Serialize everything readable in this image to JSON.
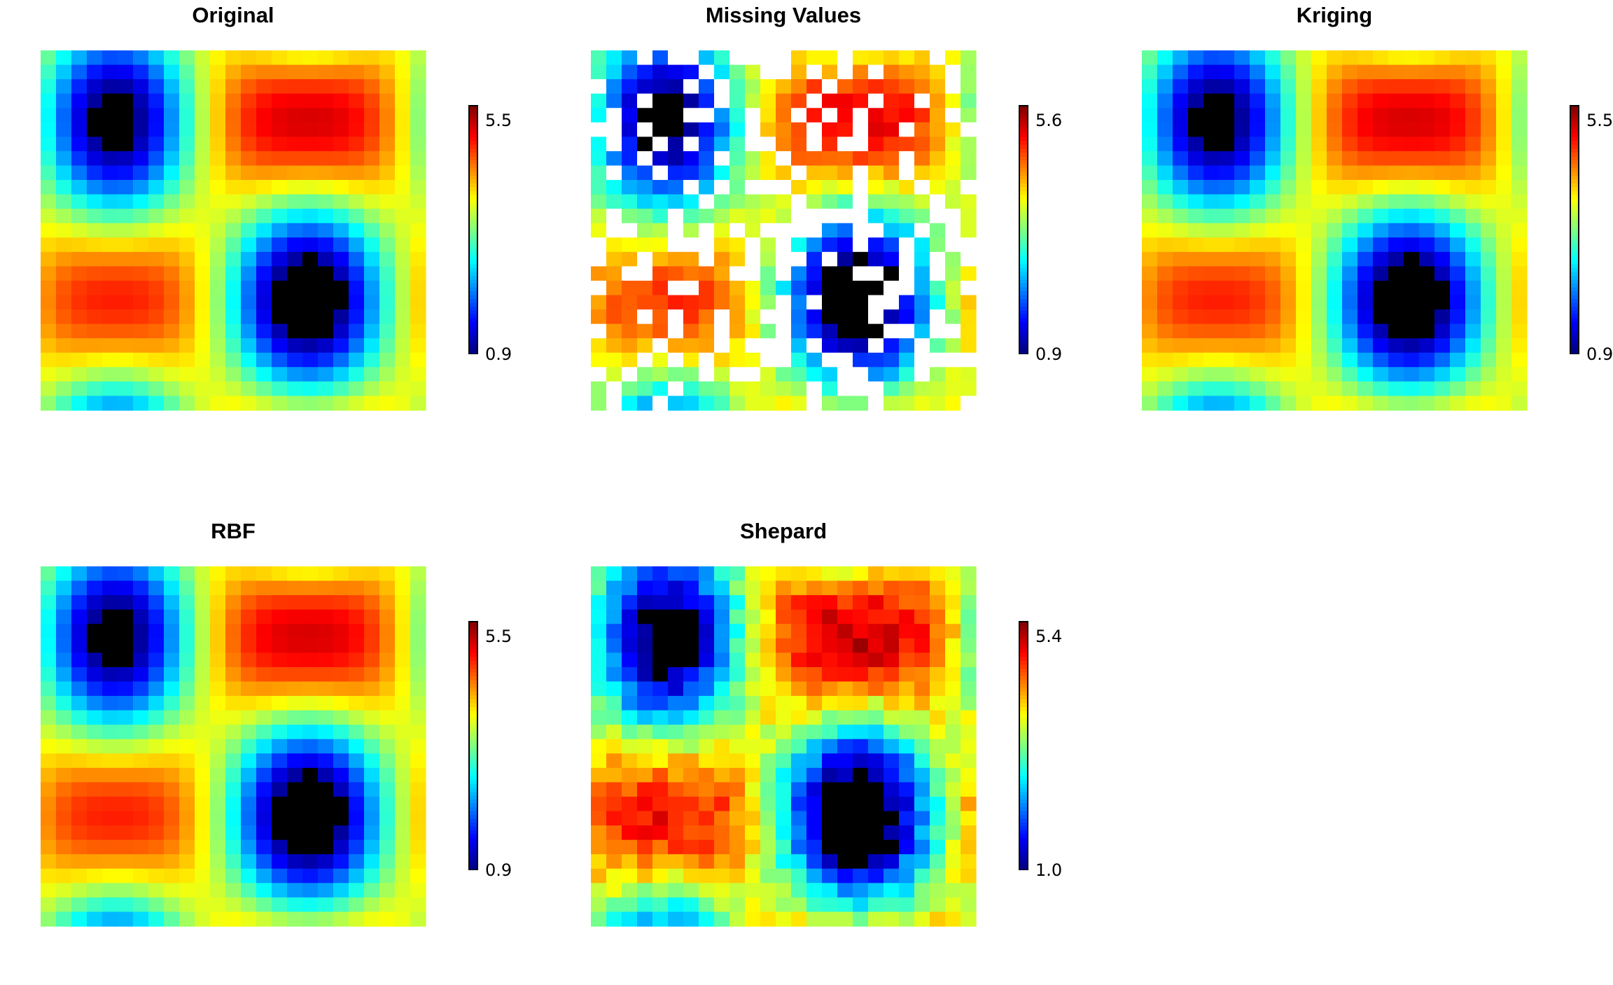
{
  "chart_data": [
    {
      "type": "heatmap",
      "title": "Original",
      "colormap": "jet",
      "grid": [
        25,
        25
      ],
      "clim": [
        0.9,
        5.5
      ],
      "colorbar_labels": {
        "max": "5.5",
        "min": "0.9"
      }
    },
    {
      "type": "heatmap",
      "title": "Missing Values",
      "colormap": "jet",
      "grid": [
        25,
        25
      ],
      "clim": [
        0.9,
        5.6
      ],
      "missing_fraction": 0.3,
      "colorbar_labels": {
        "max": "5.6",
        "min": "0.9"
      }
    },
    {
      "type": "heatmap",
      "title": "Kriging",
      "colormap": "jet",
      "grid": [
        25,
        25
      ],
      "clim": [
        0.9,
        5.5
      ],
      "colorbar_labels": {
        "max": "5.5",
        "min": "0.9"
      }
    },
    {
      "type": "heatmap",
      "title": "RBF",
      "colormap": "jet",
      "grid": [
        25,
        25
      ],
      "clim": [
        0.9,
        5.5
      ],
      "colorbar_labels": {
        "max": "5.5",
        "min": "0.9"
      }
    },
    {
      "type": "heatmap",
      "title": "Shepard",
      "colormap": "jet",
      "grid": [
        25,
        25
      ],
      "clim": [
        1.0,
        5.4
      ],
      "colorbar_labels": {
        "max": "5.4",
        "min": "1.0"
      }
    }
  ]
}
